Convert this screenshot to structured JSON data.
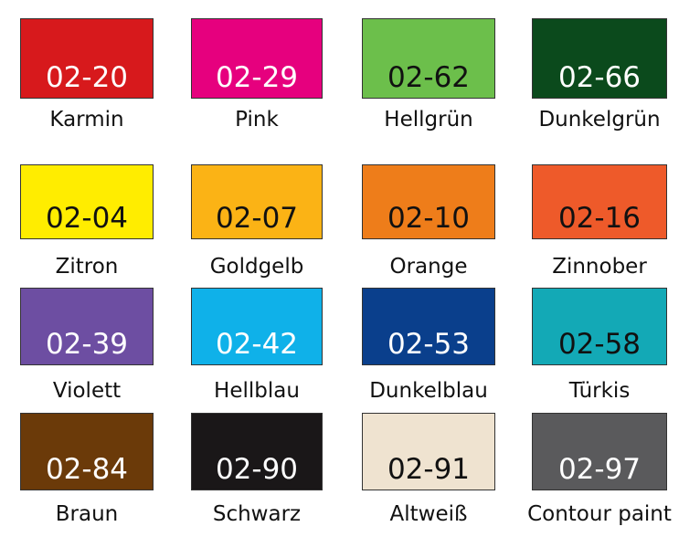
{
  "swatches": [
    {
      "code": "02-20",
      "name": "Karmin",
      "color": "#d7191c",
      "text_color": "#ffffff"
    },
    {
      "code": "02-29",
      "name": "Pink",
      "color": "#e6007e",
      "text_color": "#ffffff"
    },
    {
      "code": "02-62",
      "name": "Hellgrün",
      "color": "#6cbf4b",
      "text_color": "#111111"
    },
    {
      "code": "02-66",
      "name": "Dunkelgrün",
      "color": "#0b4a1c",
      "text_color": "#ffffff"
    },
    {
      "code": "02-04",
      "name": "Zitron",
      "color": "#ffed00",
      "text_color": "#111111"
    },
    {
      "code": "02-07",
      "name": "Goldgelb",
      "color": "#fbb315",
      "text_color": "#111111"
    },
    {
      "code": "02-10",
      "name": "Orange",
      "color": "#ee7d1a",
      "text_color": "#111111"
    },
    {
      "code": "02-16",
      "name": "Zinnober",
      "color": "#ee5a2a",
      "text_color": "#111111"
    },
    {
      "code": "02-39",
      "name": "Violett",
      "color": "#6d4ea2",
      "text_color": "#ffffff"
    },
    {
      "code": "02-42",
      "name": "Hellblau",
      "color": "#0fb1e9",
      "text_color": "#ffffff"
    },
    {
      "code": "02-53",
      "name": "Dunkelblau",
      "color": "#0a3f8c",
      "text_color": "#ffffff"
    },
    {
      "code": "02-58",
      "name": "Türkis",
      "color": "#13a9b6",
      "text_color": "#111111"
    },
    {
      "code": "02-84",
      "name": "Braun",
      "color": "#6b3a09",
      "text_color": "#ffffff"
    },
    {
      "code": "02-90",
      "name": "Schwarz",
      "color": "#1a1718",
      "text_color": "#ffffff"
    },
    {
      "code": "02-91",
      "name": "Altweiß",
      "color": "#efe3d0",
      "text_color": "#111111"
    },
    {
      "code": "02-97",
      "name": "Contour paint",
      "color": "#5a5a5c",
      "text_color": "#ffffff"
    }
  ]
}
